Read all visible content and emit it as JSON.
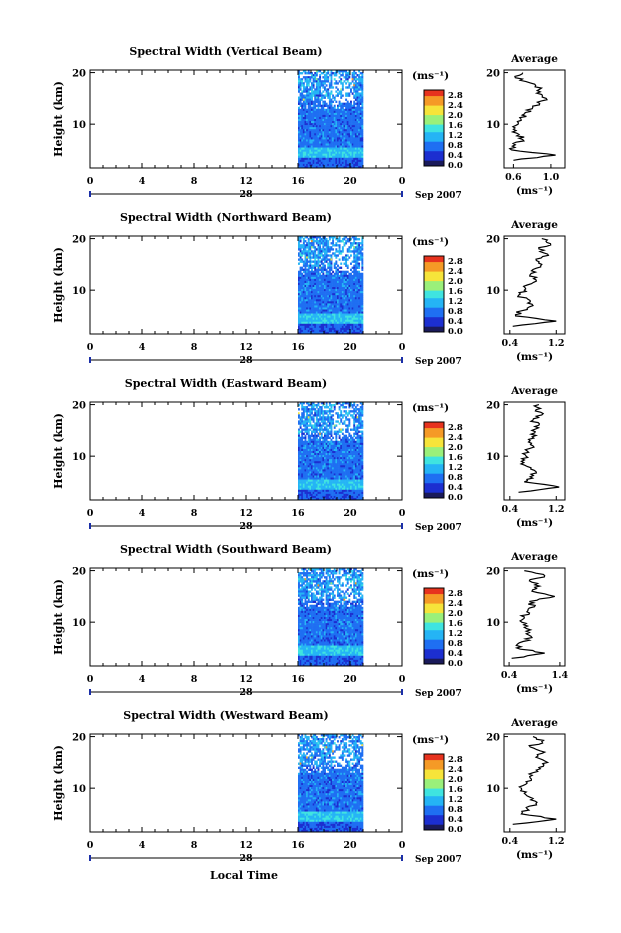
{
  "figure": {
    "xlabel": "Local Time",
    "colorbar_unit": "(ms⁻¹)",
    "colorbar_ticks": [
      "2.8",
      "2.4",
      "2.0",
      "1.6",
      "1.2",
      "0.8",
      "0.4",
      "0.0"
    ],
    "time_ticks": [
      "0",
      "4",
      "8",
      "12",
      "16",
      "20",
      "0"
    ],
    "profile_title": "Average",
    "profile_xlabel": "(ms⁻¹)",
    "colors": {
      "colormap": [
        "#1a1a5a",
        "#1c2fd0",
        "#1f6ff2",
        "#25b4f5",
        "#3fe4e0",
        "#9af07a",
        "#f6e43a",
        "#f59a26",
        "#e7331e"
      ]
    }
  },
  "chart_data": [
    {
      "type": "heatmap",
      "title": "Spectral Width (Vertical Beam)",
      "ylabel": "Height (km)",
      "yticks": [
        "20",
        "10"
      ],
      "ylim": [
        1.5,
        20.5
      ],
      "xlim": [
        0,
        24
      ],
      "date_day": "28",
      "date_month_year": "Sep 2007",
      "data_start_hour": 16,
      "data_end_hour": 21,
      "clim": [
        0,
        3.0
      ],
      "profile": {
        "xticks": [
          "0.6",
          "1.0"
        ],
        "xlim": [
          0.5,
          1.15
        ],
        "heights": [
          20,
          19,
          18,
          17,
          16,
          15,
          14,
          13,
          12,
          11,
          10,
          9,
          8,
          7,
          6,
          5,
          4,
          3
        ],
        "values": [
          0.7,
          0.62,
          0.78,
          0.9,
          0.85,
          0.95,
          0.88,
          0.8,
          0.72,
          0.68,
          0.65,
          0.6,
          0.66,
          0.7,
          0.62,
          0.58,
          1.05,
          0.6
        ]
      }
    },
    {
      "type": "heatmap",
      "title": "Spectral Width (Northward Beam)",
      "ylabel": "Height (km)",
      "yticks": [
        "20",
        "10"
      ],
      "ylim": [
        1.5,
        20.5
      ],
      "xlim": [
        0,
        24
      ],
      "date_day": "28",
      "date_month_year": "Sep 2007",
      "data_start_hour": 16,
      "data_end_hour": 21,
      "clim": [
        0,
        3.0
      ],
      "profile": {
        "xticks": [
          "0.4",
          "1.2"
        ],
        "xlim": [
          0.3,
          1.35
        ],
        "heights": [
          20,
          19,
          18,
          17,
          16,
          15,
          14,
          13,
          12,
          11,
          10,
          9,
          8,
          7,
          6,
          5,
          4,
          3
        ],
        "values": [
          0.95,
          1.1,
          0.9,
          1.05,
          0.85,
          0.95,
          0.8,
          0.75,
          0.85,
          0.7,
          0.65,
          0.55,
          0.75,
          0.8,
          0.6,
          0.5,
          1.2,
          0.45
        ]
      }
    },
    {
      "type": "heatmap",
      "title": "Spectral Width (Eastward Beam)",
      "ylabel": "Height (km)",
      "yticks": [
        "20",
        "10"
      ],
      "ylim": [
        1.5,
        20.5
      ],
      "xlim": [
        0,
        24
      ],
      "date_day": "28",
      "date_month_year": "Sep 2007",
      "data_start_hour": 16,
      "data_end_hour": 21,
      "clim": [
        0,
        3.0
      ],
      "profile": {
        "xticks": [
          "0.4",
          "1.2"
        ],
        "xlim": [
          0.3,
          1.35
        ],
        "heights": [
          20,
          19,
          18,
          17,
          16,
          15,
          14,
          13,
          12,
          11,
          10,
          9,
          8,
          7,
          6,
          5,
          4,
          3
        ],
        "values": [
          0.9,
          0.85,
          0.95,
          0.8,
          0.9,
          0.78,
          0.85,
          0.75,
          0.8,
          0.7,
          0.68,
          0.6,
          0.7,
          0.85,
          0.75,
          0.65,
          1.25,
          0.55
        ]
      }
    },
    {
      "type": "heatmap",
      "title": "Spectral Width (Southward Beam)",
      "ylabel": "Height (km)",
      "yticks": [
        "20",
        "10"
      ],
      "ylim": [
        1.5,
        20.5
      ],
      "xlim": [
        0,
        24
      ],
      "date_day": "28",
      "date_month_year": "Sep 2007",
      "data_start_hour": 16,
      "data_end_hour": 21,
      "clim": [
        0,
        3.0
      ],
      "profile": {
        "xticks": [
          "0.4",
          "1.4"
        ],
        "xlim": [
          0.3,
          1.5
        ],
        "heights": [
          20,
          19,
          18,
          17,
          16,
          15,
          14,
          13,
          12,
          11,
          10,
          9,
          8,
          7,
          6,
          5,
          4,
          3
        ],
        "values": [
          0.7,
          1.1,
          0.8,
          1.0,
          0.85,
          1.3,
          0.8,
          0.9,
          0.75,
          0.7,
          0.65,
          0.7,
          0.8,
          0.85,
          0.6,
          0.55,
          1.1,
          0.45
        ]
      }
    },
    {
      "type": "heatmap",
      "title": "Spectral Width (Westward Beam)",
      "ylabel": "Height (km)",
      "yticks": [
        "20",
        "10"
      ],
      "ylim": [
        1.5,
        20.5
      ],
      "xlim": [
        0,
        24
      ],
      "date_day": "28",
      "date_month_year": "Sep 2007",
      "data_start_hour": 16,
      "data_end_hour": 21,
      "clim": [
        0,
        3.0
      ],
      "profile": {
        "xticks": [
          "0.4",
          "1.2"
        ],
        "xlim": [
          0.3,
          1.35
        ],
        "heights": [
          20,
          19,
          18,
          17,
          16,
          15,
          14,
          13,
          12,
          11,
          10,
          9,
          8,
          7,
          6,
          5,
          4,
          3
        ],
        "values": [
          0.8,
          0.95,
          0.75,
          1.0,
          0.85,
          1.05,
          0.9,
          0.8,
          0.75,
          0.7,
          0.6,
          0.65,
          0.8,
          0.85,
          0.7,
          0.6,
          1.2,
          0.45
        ]
      }
    }
  ]
}
